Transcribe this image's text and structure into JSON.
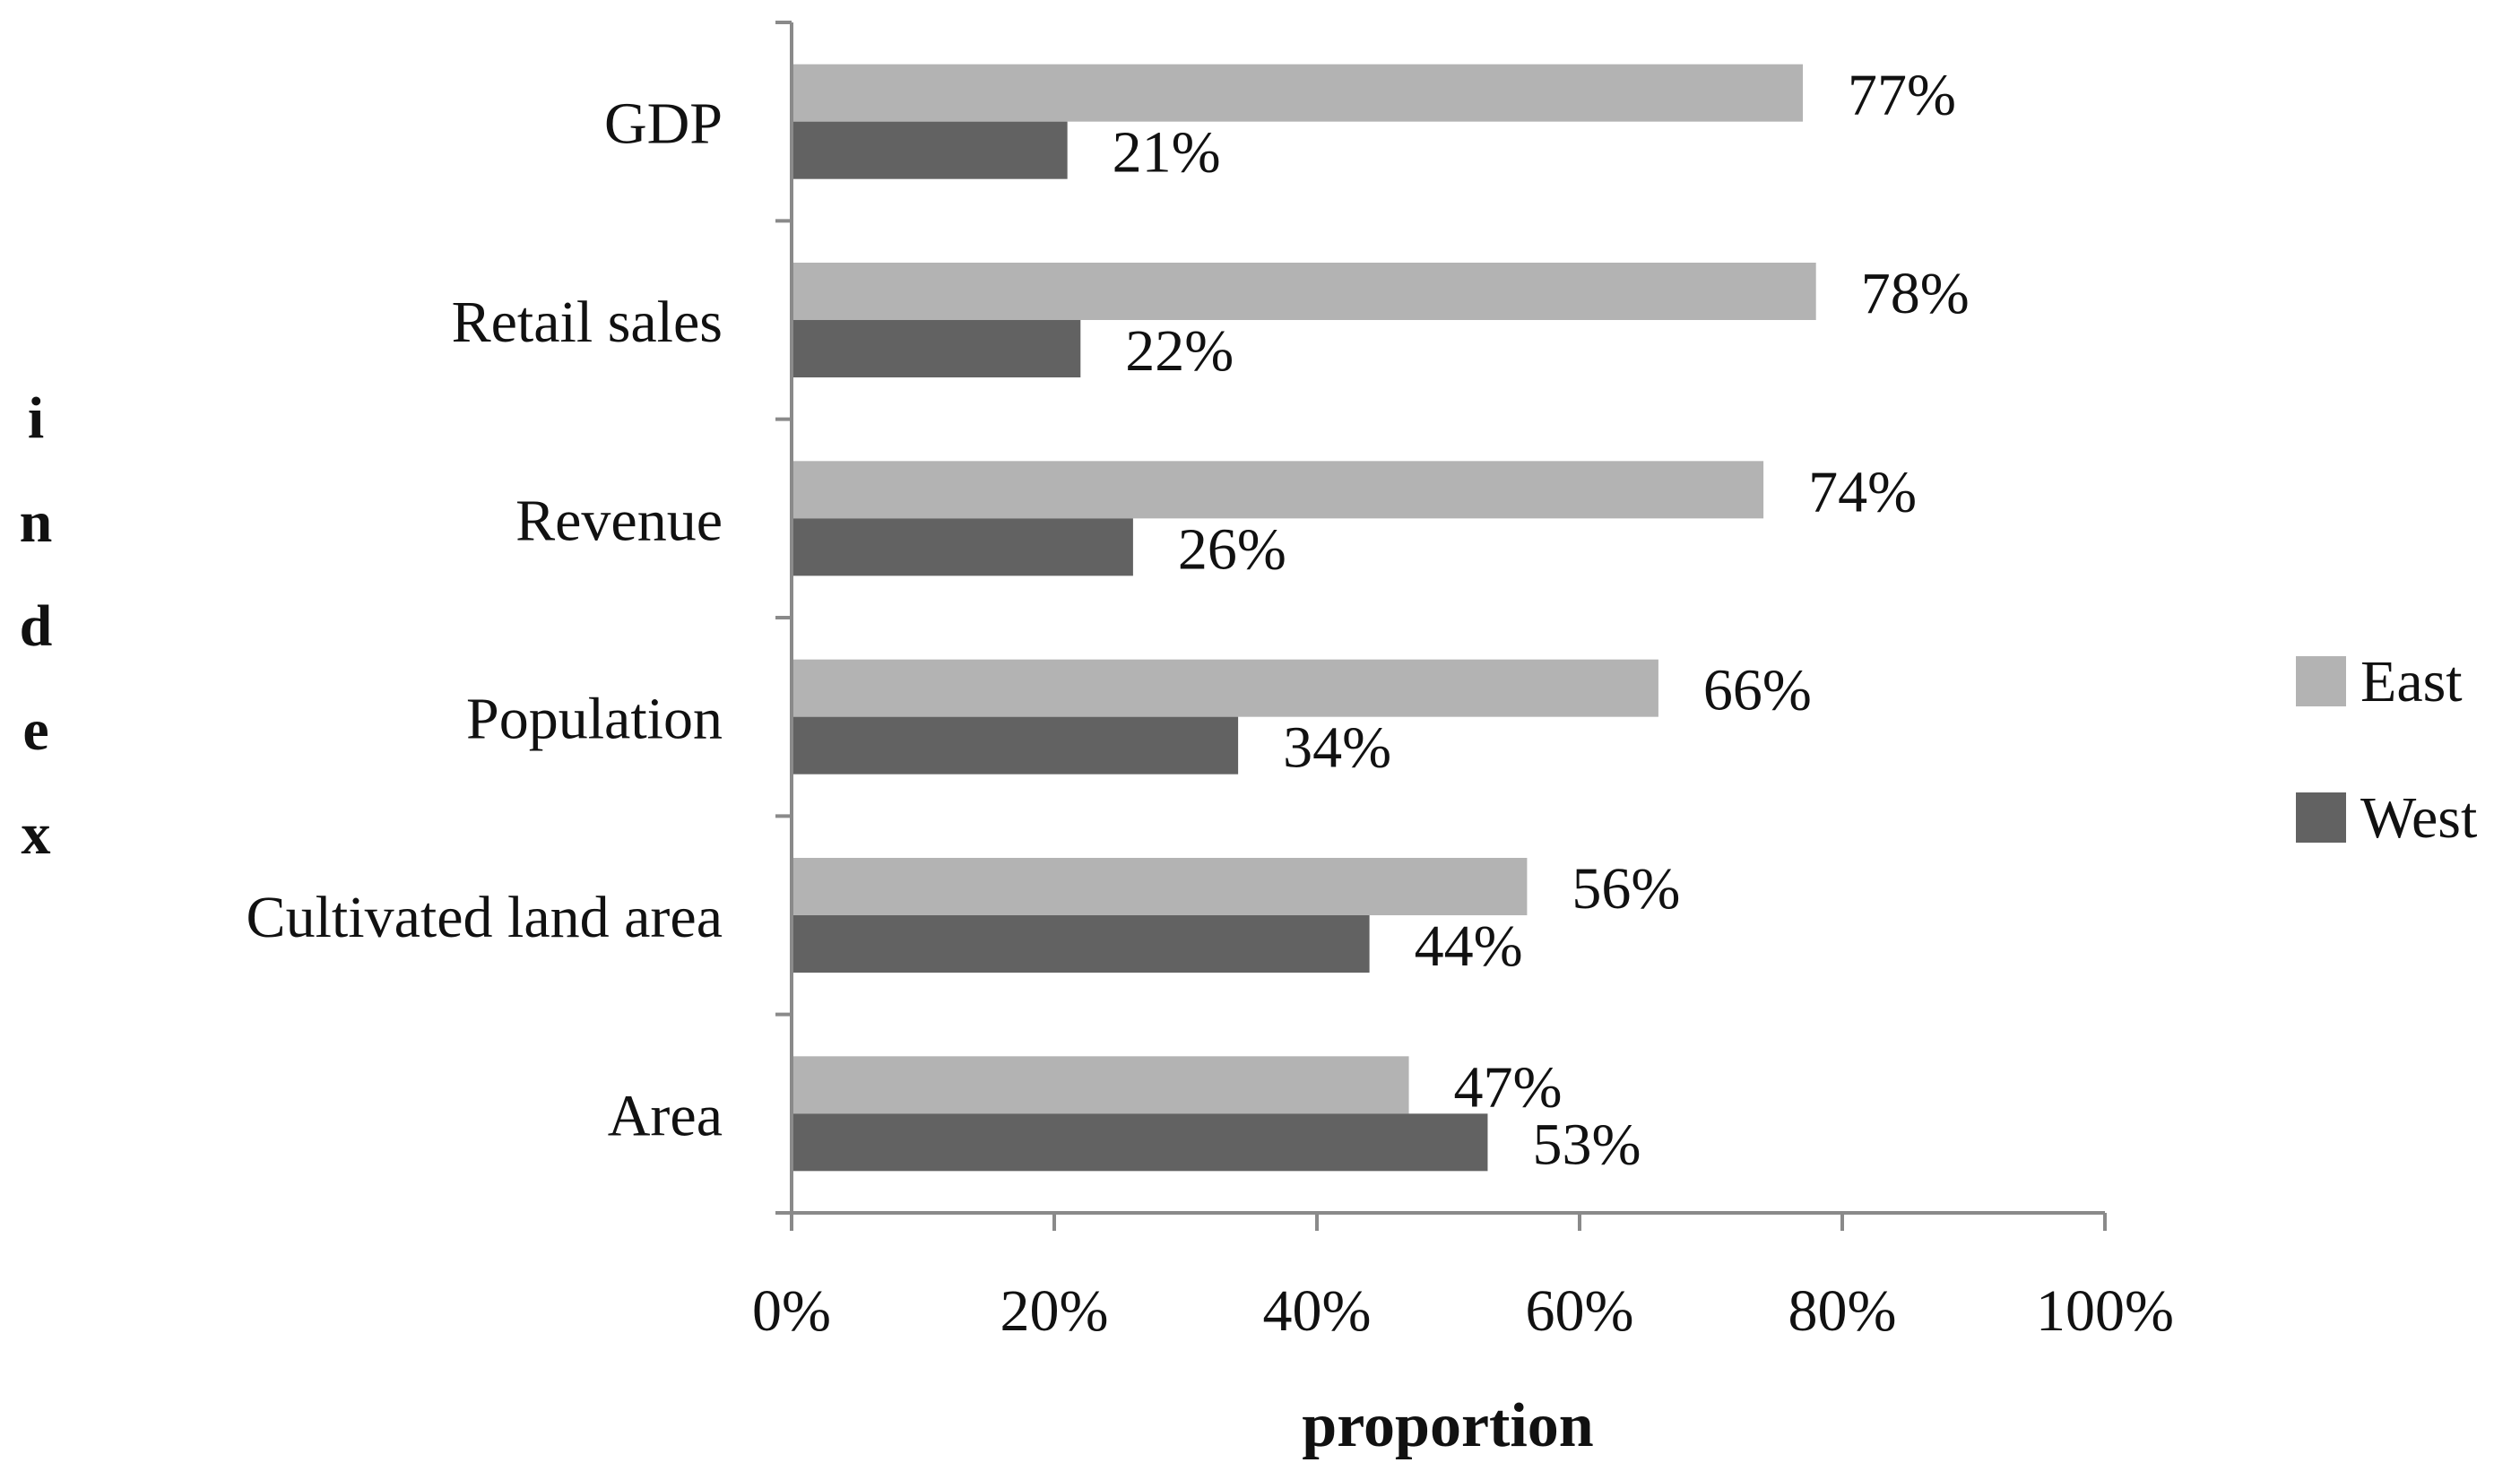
{
  "chart_data": {
    "type": "bar",
    "orientation": "horizontal",
    "title": "",
    "categories": [
      "GDP",
      "Retail sales",
      "Revenue",
      "Population",
      "Cultivated land area",
      "Area"
    ],
    "series": [
      {
        "name": "East",
        "color": "#b3b3b3",
        "values": [
          77,
          78,
          74,
          66,
          56,
          47
        ],
        "labels": [
          "77%",
          "78%",
          "74%",
          "66%",
          "56%",
          "47%"
        ]
      },
      {
        "name": "West",
        "color": "#626262",
        "values": [
          21,
          22,
          26,
          34,
          44,
          53
        ],
        "labels": [
          "21%",
          "22%",
          "26%",
          "34%",
          "44%",
          "53%"
        ]
      }
    ],
    "xlabel": "proportion",
    "ylabel": "index",
    "ylabel_letters": [
      "i",
      "n",
      "d",
      "e",
      "x"
    ],
    "xlim": [
      0,
      100
    ],
    "x_ticks": [
      0,
      20,
      40,
      60,
      80,
      100
    ],
    "x_tick_labels": [
      "0%",
      "20%",
      "40%",
      "60%",
      "80%",
      "100%"
    ],
    "grid": false,
    "legend_position": "right"
  }
}
